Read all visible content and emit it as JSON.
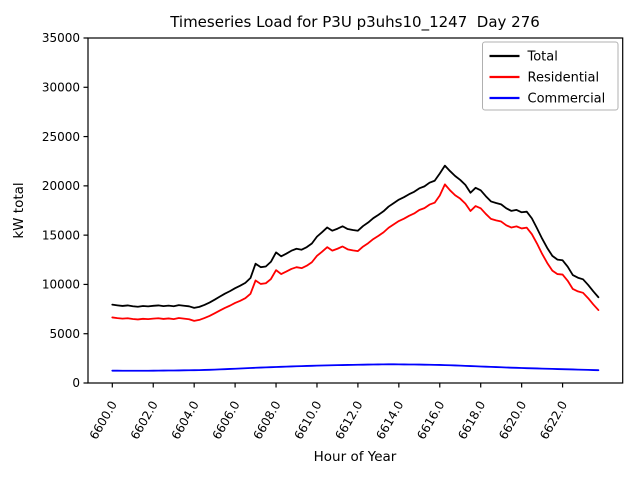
{
  "chart_data": {
    "type": "line",
    "title": "Timeseries Load for P3U p3uhs10_1247  Day 276",
    "xlabel": "Hour of Year",
    "ylabel": "kW total",
    "xlim": [
      6598.8125,
      6624.9375
    ],
    "ylim": [
      0,
      35000
    ],
    "grid": false,
    "xticks": {
      "values": [
        6600,
        6602,
        6604,
        6606,
        6608,
        6610,
        6612,
        6614,
        6616,
        6618,
        6620,
        6622
      ],
      "labels": [
        "6600.0",
        "6602.0",
        "6604.0",
        "6606.0",
        "6608.0",
        "6610.0",
        "6612.0",
        "6614.0",
        "6616.0",
        "6618.0",
        "6620.0",
        "6622.0"
      ]
    },
    "yticks": {
      "values": [
        0,
        5000,
        10000,
        15000,
        20000,
        25000,
        30000,
        35000
      ],
      "labels": [
        "0",
        "5000",
        "10000",
        "15000",
        "20000",
        "25000",
        "30000",
        "35000"
      ]
    },
    "legend": {
      "position": "upper right",
      "entries": [
        "Total",
        "Residential",
        "Commercial"
      ]
    },
    "x": [
      6600.0,
      6600.25,
      6600.5,
      6600.75,
      6601.0,
      6601.25,
      6601.5,
      6601.75,
      6602.0,
      6602.25,
      6602.5,
      6602.75,
      6603.0,
      6603.25,
      6603.5,
      6603.75,
      6604.0,
      6604.25,
      6604.5,
      6604.75,
      6605.0,
      6605.25,
      6605.5,
      6605.75,
      6606.0,
      6606.25,
      6606.5,
      6606.75,
      6607.0,
      6607.25,
      6607.5,
      6607.75,
      6608.0,
      6608.25,
      6608.5,
      6608.75,
      6609.0,
      6609.25,
      6609.5,
      6609.75,
      6610.0,
      6610.25,
      6610.5,
      6610.75,
      6611.0,
      6611.25,
      6611.5,
      6611.75,
      6612.0,
      6612.25,
      6612.5,
      6612.75,
      6613.0,
      6613.25,
      6613.5,
      6613.75,
      6614.0,
      6614.25,
      6614.5,
      6614.75,
      6615.0,
      6615.25,
      6615.5,
      6615.75,
      6616.0,
      6616.25,
      6616.5,
      6616.75,
      6617.0,
      6617.25,
      6617.5,
      6617.75,
      6618.0,
      6618.25,
      6618.5,
      6618.75,
      6619.0,
      6619.25,
      6619.5,
      6619.75,
      6620.0,
      6620.25,
      6620.5,
      6620.75,
      6621.0,
      6621.25,
      6621.5,
      6621.75,
      6622.0,
      6622.25,
      6622.5,
      6622.75,
      6623.0,
      6623.25,
      6623.5,
      6623.75
    ],
    "series": [
      {
        "name": "Total",
        "color": "#000000",
        "values": [
          7950,
          7880,
          7820,
          7870,
          7790,
          7740,
          7810,
          7770,
          7830,
          7870,
          7800,
          7850,
          7790,
          7900,
          7840,
          7780,
          7620,
          7720,
          7920,
          8160,
          8450,
          8760,
          9060,
          9320,
          9620,
          9870,
          10160,
          10650,
          12100,
          11750,
          11820,
          12300,
          13250,
          12850,
          13120,
          13420,
          13620,
          13520,
          13780,
          14150,
          14850,
          15300,
          15780,
          15450,
          15650,
          15900,
          15620,
          15520,
          15450,
          15920,
          16280,
          16720,
          17060,
          17420,
          17900,
          18250,
          18600,
          18850,
          19150,
          19400,
          19750,
          19950,
          20320,
          20520,
          21250,
          22050,
          21500,
          21000,
          20600,
          20100,
          19300,
          19800,
          19550,
          18950,
          18420,
          18260,
          18120,
          17720,
          17460,
          17560,
          17320,
          17380,
          16700,
          15700,
          14650,
          13700,
          12900,
          12520,
          12450,
          11800,
          10950,
          10680,
          10520,
          9950,
          9300,
          8700
        ]
      },
      {
        "name": "Residential",
        "color": "#ff0000",
        "values": [
          6650,
          6580,
          6530,
          6570,
          6490,
          6450,
          6510,
          6480,
          6530,
          6570,
          6500,
          6550,
          6480,
          6590,
          6530,
          6470,
          6300,
          6400,
          6590,
          6800,
          7070,
          7350,
          7620,
          7850,
          8120,
          8340,
          8600,
          9050,
          10400,
          10050,
          10120,
          10550,
          11450,
          11050,
          11300,
          11570,
          11750,
          11650,
          11900,
          12250,
          12900,
          13320,
          13780,
          13430,
          13620,
          13850,
          13560,
          13450,
          13380,
          13840,
          14180,
          14600,
          14930,
          15280,
          15750,
          16090,
          16430,
          16670,
          16960,
          17200,
          17550,
          17740,
          18100,
          18290,
          19020,
          20150,
          19550,
          19050,
          18700,
          18200,
          17450,
          17950,
          17720,
          17150,
          16650,
          16500,
          16380,
          16000,
          15770,
          15890,
          15680,
          15760,
          15100,
          14150,
          13100,
          12180,
          11400,
          11050,
          11000,
          10370,
          9540,
          9290,
          9150,
          8600,
          7970,
          7400
        ]
      },
      {
        "name": "Commercial",
        "color": "#0000ff",
        "values": [
          1250,
          1250,
          1245,
          1245,
          1240,
          1240,
          1245,
          1245,
          1250,
          1255,
          1260,
          1265,
          1270,
          1275,
          1285,
          1290,
          1300,
          1310,
          1325,
          1340,
          1360,
          1380,
          1400,
          1425,
          1445,
          1470,
          1495,
          1520,
          1545,
          1565,
          1585,
          1605,
          1625,
          1645,
          1665,
          1680,
          1700,
          1715,
          1730,
          1745,
          1760,
          1775,
          1790,
          1800,
          1810,
          1820,
          1830,
          1840,
          1850,
          1860,
          1870,
          1880,
          1885,
          1890,
          1895,
          1895,
          1890,
          1885,
          1880,
          1875,
          1870,
          1860,
          1850,
          1840,
          1830,
          1815,
          1800,
          1780,
          1760,
          1740,
          1720,
          1700,
          1675,
          1655,
          1635,
          1615,
          1595,
          1575,
          1555,
          1540,
          1520,
          1505,
          1490,
          1475,
          1460,
          1445,
          1430,
          1415,
          1400,
          1390,
          1375,
          1360,
          1345,
          1330,
          1315,
          1300
        ]
      }
    ]
  }
}
